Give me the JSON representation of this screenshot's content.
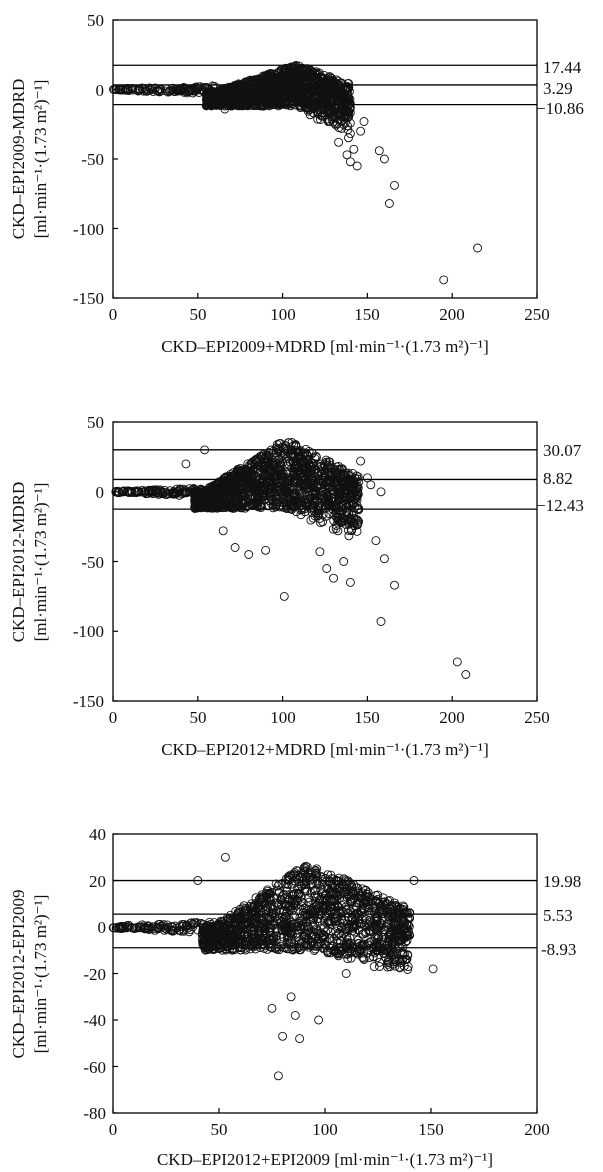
{
  "chart_data": [
    {
      "type": "scatter",
      "title": "",
      "ylabel_line1": "CKD–EPI2009-MDRD",
      "ylabel_line2": "[ml·min⁻¹·(1.73 m²)⁻¹]",
      "xlabel": "CKD–EPI2009+MDRD [ml·min⁻¹·(1.73 m²)⁻¹]",
      "xlim": [
        0,
        250
      ],
      "ylim": [
        -150,
        50
      ],
      "xticks": [
        0,
        50,
        100,
        150,
        200,
        250
      ],
      "yticks": [
        -150,
        -100,
        -50,
        0,
        50
      ],
      "reference_lines": [
        {
          "label": "17.44",
          "value": 17.44
        },
        {
          "label": "3.29",
          "value": 3.29
        },
        {
          "label": "−10.86",
          "value": -10.86
        }
      ],
      "cloud": {
        "tail_start_x": 0,
        "tail_end_x": 60,
        "tail_y": 0,
        "x_min": 55,
        "x_peak": 108,
        "x_max": 140,
        "upper_peak": 18,
        "lower_base": -12,
        "lower_drop": -40
      },
      "outliers": [
        [
          66,
          -14
        ],
        [
          133,
          -38
        ],
        [
          138,
          -47
        ],
        [
          140,
          -52
        ],
        [
          142,
          -43
        ],
        [
          144,
          -55
        ],
        [
          146,
          -30
        ],
        [
          148,
          -23
        ],
        [
          157,
          -44
        ],
        [
          160,
          -50
        ],
        [
          163,
          -82
        ],
        [
          166,
          -69
        ],
        [
          195,
          -137
        ],
        [
          215,
          -114
        ]
      ]
    },
    {
      "type": "scatter",
      "title": "",
      "ylabel_line1": "CKD–EPI2012-MDRD",
      "ylabel_line2": "[ml·min⁻¹·(1.73 m²)⁻¹]",
      "xlabel": "CKD–EPI2012+MDRD [ml·min⁻¹·(1.73 m²)⁻¹]",
      "xlim": [
        0,
        250
      ],
      "ylim": [
        -150,
        50
      ],
      "xticks": [
        0,
        50,
        100,
        150,
        200,
        250
      ],
      "yticks": [
        -150,
        -100,
        -50,
        0,
        50
      ],
      "reference_lines": [
        {
          "label": "30.07",
          "value": 30.07
        },
        {
          "label": "8.82",
          "value": 8.82
        },
        {
          "label": "−12.43",
          "value": -12.43
        }
      ],
      "cloud": {
        "tail_start_x": 0,
        "tail_end_x": 52,
        "tail_y": 0,
        "x_min": 48,
        "x_peak": 102,
        "x_max": 145,
        "upper_peak": 38,
        "lower_base": -12,
        "lower_drop": -38
      },
      "outliers": [
        [
          43,
          20
        ],
        [
          54,
          30
        ],
        [
          65,
          -28
        ],
        [
          72,
          -40
        ],
        [
          80,
          -45
        ],
        [
          90,
          -42
        ],
        [
          101,
          -75
        ],
        [
          122,
          -43
        ],
        [
          126,
          -55
        ],
        [
          130,
          -62
        ],
        [
          136,
          -50
        ],
        [
          140,
          -65
        ],
        [
          146,
          22
        ],
        [
          150,
          10
        ],
        [
          152,
          5
        ],
        [
          155,
          -35
        ],
        [
          158,
          0
        ],
        [
          160,
          -48
        ],
        [
          158,
          -93
        ],
        [
          166,
          -67
        ],
        [
          203,
          -122
        ],
        [
          208,
          -131
        ]
      ]
    },
    {
      "type": "scatter",
      "title": "",
      "ylabel_line1": "CKD–EPI2012-EPI2009",
      "ylabel_line2": "[ml·min⁻¹·(1.73 m²)⁻¹]",
      "xlabel": "CKD–EPI2012+EPI2009 [ml·min⁻¹·(1.73 m²)⁻¹]",
      "xlim": [
        0,
        200
      ],
      "ylim": [
        -80,
        40
      ],
      "xticks": [
        0,
        50,
        100,
        150,
        200
      ],
      "yticks": [
        -80,
        -60,
        -40,
        -20,
        0,
        20,
        40
      ],
      "reference_lines": [
        {
          "label": "19.98",
          "value": 19.98
        },
        {
          "label": "5.53",
          "value": 5.53
        },
        {
          "label": "-8.93",
          "value": -8.93
        }
      ],
      "cloud": {
        "tail_start_x": 0,
        "tail_end_x": 48,
        "tail_y": 0,
        "x_min": 42,
        "x_peak": 92,
        "x_max": 140,
        "upper_peak": 28,
        "lower_base": -10,
        "lower_drop": -22
      },
      "outliers": [
        [
          40,
          20
        ],
        [
          53,
          30
        ],
        [
          75,
          -35
        ],
        [
          80,
          -47
        ],
        [
          84,
          -30
        ],
        [
          86,
          -38
        ],
        [
          88,
          -48
        ],
        [
          78,
          -64
        ],
        [
          97,
          -40
        ],
        [
          110,
          -20
        ],
        [
          130,
          -15
        ],
        [
          142,
          20
        ],
        [
          151,
          -18
        ]
      ]
    }
  ]
}
